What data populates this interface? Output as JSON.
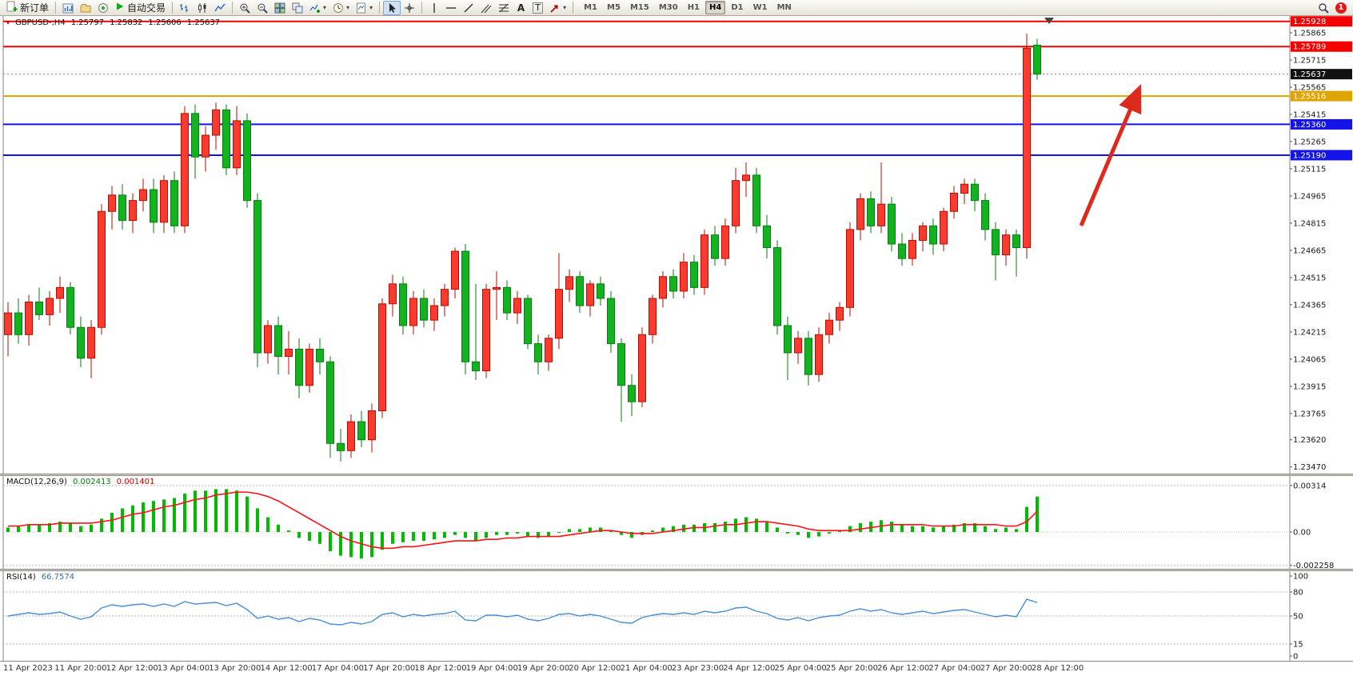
{
  "toolbar": {
    "new_order": "新订单",
    "autotrading": "自动交易",
    "text_tool": "A",
    "label_tool": "T",
    "timeframes": [
      "M1",
      "M5",
      "M15",
      "M30",
      "H1",
      "H4",
      "D1",
      "W1",
      "MN"
    ],
    "active_timeframe": "H4",
    "notification_count": "1"
  },
  "chart_header": {
    "symbol_tf": "GBPUSD-,H4",
    "open": "1.25797",
    "high": "1.25832",
    "low": "1.25606",
    "close": "1.25637"
  },
  "colors": {
    "up": "#f93b2f",
    "up_border": "#b80e00",
    "down": "#12b31f",
    "down_border": "#067d10",
    "macd_hist": "#00bb00",
    "macd_signal": "#ff1212",
    "rsi": "#4a8fd4",
    "arrow": "#dc2a1c",
    "axis_text": "#1a1a1a",
    "grid_dash": "#b5b5b5"
  },
  "hlines": [
    {
      "price": 1.25928,
      "label": "1.25928",
      "line": "#f50000",
      "box": "#f50000",
      "width": 2,
      "dashed": false
    },
    {
      "price": 1.25789,
      "label": "1.25789",
      "line": "#f50000",
      "box": "#f50000",
      "width": 2,
      "dashed": false
    },
    {
      "price": 1.25637,
      "label": "1.25637",
      "line": "#808080",
      "box": "#111111",
      "width": 1,
      "dashed": true
    },
    {
      "price": 1.25516,
      "label": "1.25516",
      "line": "#e0a400",
      "box": "#e0a400",
      "width": 2,
      "dashed": false
    },
    {
      "price": 1.2536,
      "label": "1.25360",
      "line": "#1414e8",
      "box": "#1414e8",
      "width": 2,
      "dashed": false
    },
    {
      "price": 1.2519,
      "label": "1.25190",
      "line": "#1414e8",
      "box": "#1414e8",
      "width": 2,
      "dashed": false
    }
  ],
  "price_axis": {
    "ticks": [
      "1.25865",
      "1.25715",
      "1.25565",
      "1.25415",
      "1.25265",
      "1.25115",
      "1.24965",
      "1.24815",
      "1.24665",
      "1.24515",
      "1.24365",
      "1.24215",
      "1.24065",
      "1.23915",
      "1.23765",
      "1.23620",
      "1.23470"
    ]
  },
  "chart_data": {
    "type": "candlestick",
    "symbol": "GBPUSD-",
    "timeframe": "H4",
    "price_range": [
      1.2346,
      1.2594
    ],
    "candles": [
      [
        1.242,
        1.2438,
        1.2408,
        1.2432
      ],
      [
        1.2432,
        1.244,
        1.2415,
        1.242
      ],
      [
        1.242,
        1.2442,
        1.2414,
        1.2438
      ],
      [
        1.2438,
        1.2446,
        1.2428,
        1.2431
      ],
      [
        1.2431,
        1.2444,
        1.2425,
        1.244
      ],
      [
        1.244,
        1.2452,
        1.2432,
        1.2446
      ],
      [
        1.2446,
        1.2449,
        1.242,
        1.2424
      ],
      [
        1.2424,
        1.243,
        1.2402,
        1.2407
      ],
      [
        1.2407,
        1.2428,
        1.2396,
        1.2424
      ],
      [
        1.2424,
        1.2492,
        1.242,
        1.2488
      ],
      [
        1.2488,
        1.2502,
        1.2478,
        1.2497
      ],
      [
        1.2497,
        1.2503,
        1.2478,
        1.2483
      ],
      [
        1.2483,
        1.2498,
        1.2476,
        1.2494
      ],
      [
        1.2494,
        1.2506,
        1.2488,
        1.25
      ],
      [
        1.25,
        1.2506,
        1.2476,
        1.2482
      ],
      [
        1.2482,
        1.2508,
        1.2476,
        1.2505
      ],
      [
        1.2505,
        1.251,
        1.2476,
        1.248
      ],
      [
        1.248,
        1.2546,
        1.2476,
        1.2542
      ],
      [
        1.2542,
        1.2547,
        1.2506,
        1.2518
      ],
      [
        1.2518,
        1.2535,
        1.251,
        1.253
      ],
      [
        1.253,
        1.2548,
        1.2522,
        1.2544
      ],
      [
        1.2544,
        1.2547,
        1.2508,
        1.2512
      ],
      [
        1.2512,
        1.2546,
        1.2508,
        1.2538
      ],
      [
        1.2538,
        1.2542,
        1.249,
        1.2494
      ],
      [
        1.2494,
        1.2498,
        1.2402,
        1.241
      ],
      [
        1.241,
        1.2428,
        1.2404,
        1.2425
      ],
      [
        1.2425,
        1.243,
        1.2398,
        1.2408
      ],
      [
        1.2408,
        1.2422,
        1.2398,
        1.2412
      ],
      [
        1.2412,
        1.2418,
        1.2385,
        1.2392
      ],
      [
        1.2392,
        1.2415,
        1.2388,
        1.2412
      ],
      [
        1.2412,
        1.2418,
        1.2398,
        1.2405
      ],
      [
        1.2405,
        1.2408,
        1.2352,
        1.236
      ],
      [
        1.236,
        1.2368,
        1.235,
        1.2356
      ],
      [
        1.2356,
        1.2376,
        1.2352,
        1.2372
      ],
      [
        1.2372,
        1.2378,
        1.2358,
        1.2362
      ],
      [
        1.2362,
        1.2382,
        1.2355,
        1.2378
      ],
      [
        1.2378,
        1.244,
        1.2374,
        1.2437
      ],
      [
        1.2437,
        1.2453,
        1.243,
        1.2448
      ],
      [
        1.2448,
        1.2452,
        1.242,
        1.2425
      ],
      [
        1.2425,
        1.2444,
        1.242,
        1.244
      ],
      [
        1.244,
        1.2445,
        1.2424,
        1.2428
      ],
      [
        1.2428,
        1.244,
        1.2422,
        1.2436
      ],
      [
        1.2436,
        1.2448,
        1.243,
        1.2445
      ],
      [
        1.2445,
        1.2468,
        1.244,
        1.2466
      ],
      [
        1.2466,
        1.247,
        1.2398,
        1.2405
      ],
      [
        1.2405,
        1.2448,
        1.2395,
        1.24
      ],
      [
        1.24,
        1.2448,
        1.2396,
        1.2445
      ],
      [
        1.2445,
        1.2455,
        1.2428,
        1.2446
      ],
      [
        1.2446,
        1.245,
        1.2428,
        1.2432
      ],
      [
        1.2432,
        1.2444,
        1.2426,
        1.244
      ],
      [
        1.244,
        1.2442,
        1.2412,
        1.2415
      ],
      [
        1.2415,
        1.242,
        1.2398,
        1.2405
      ],
      [
        1.2405,
        1.242,
        1.24,
        1.2418
      ],
      [
        1.2418,
        1.2465,
        1.2412,
        1.2445
      ],
      [
        1.2445,
        1.2456,
        1.2438,
        1.2452
      ],
      [
        1.2452,
        1.2455,
        1.2432,
        1.2436
      ],
      [
        1.2436,
        1.245,
        1.243,
        1.2448
      ],
      [
        1.2448,
        1.2452,
        1.2436,
        1.244
      ],
      [
        1.244,
        1.2444,
        1.241,
        1.2415
      ],
      [
        1.2415,
        1.2418,
        1.2372,
        1.2392
      ],
      [
        1.2392,
        1.2398,
        1.2375,
        1.2383
      ],
      [
        1.2383,
        1.2424,
        1.238,
        1.242
      ],
      [
        1.242,
        1.2442,
        1.2415,
        1.244
      ],
      [
        1.244,
        1.2455,
        1.2435,
        1.2452
      ],
      [
        1.2452,
        1.2456,
        1.244,
        1.2444
      ],
      [
        1.2444,
        1.2465,
        1.244,
        1.246
      ],
      [
        1.246,
        1.2464,
        1.2442,
        1.2446
      ],
      [
        1.2446,
        1.2478,
        1.2442,
        1.2475
      ],
      [
        1.2475,
        1.248,
        1.2458,
        1.2462
      ],
      [
        1.2462,
        1.2484,
        1.2458,
        1.248
      ],
      [
        1.248,
        1.2512,
        1.2476,
        1.2505
      ],
      [
        1.2505,
        1.2515,
        1.2496,
        1.2508
      ],
      [
        1.2508,
        1.2512,
        1.2476,
        1.248
      ],
      [
        1.248,
        1.2486,
        1.2462,
        1.2468
      ],
      [
        1.2468,
        1.2472,
        1.242,
        1.2425
      ],
      [
        1.2425,
        1.243,
        1.2395,
        1.241
      ],
      [
        1.241,
        1.2422,
        1.2404,
        1.2418
      ],
      [
        1.2418,
        1.2422,
        1.2392,
        1.2398
      ],
      [
        1.2398,
        1.2424,
        1.2394,
        1.242
      ],
      [
        1.242,
        1.2432,
        1.2415,
        1.2428
      ],
      [
        1.2428,
        1.2438,
        1.2422,
        1.2435
      ],
      [
        1.2435,
        1.2482,
        1.243,
        1.2478
      ],
      [
        1.2478,
        1.2498,
        1.2472,
        1.2495
      ],
      [
        1.2495,
        1.2499,
        1.2476,
        1.248
      ],
      [
        1.248,
        1.2515,
        1.2476,
        1.2492
      ],
      [
        1.2492,
        1.2496,
        1.2466,
        1.247
      ],
      [
        1.247,
        1.2476,
        1.2458,
        1.2462
      ],
      [
        1.2462,
        1.2476,
        1.2458,
        1.2472
      ],
      [
        1.2472,
        1.2482,
        1.2466,
        1.248
      ],
      [
        1.248,
        1.2484,
        1.2464,
        1.247
      ],
      [
        1.247,
        1.249,
        1.2466,
        1.2488
      ],
      [
        1.2488,
        1.2502,
        1.2484,
        1.2498
      ],
      [
        1.2498,
        1.2506,
        1.2492,
        1.2503
      ],
      [
        1.2503,
        1.2506,
        1.2488,
        1.2494
      ],
      [
        1.2494,
        1.2498,
        1.2472,
        1.2478
      ],
      [
        1.2478,
        1.2482,
        1.245,
        1.2464
      ],
      [
        1.2464,
        1.2478,
        1.2458,
        1.2475
      ],
      [
        1.2475,
        1.2478,
        1.2452,
        1.2468
      ],
      [
        1.2468,
        1.2586,
        1.2462,
        1.2578
      ],
      [
        1.25797,
        1.25832,
        1.25606,
        1.25637
      ]
    ],
    "macd": {
      "label": "MACD(12,26,9)",
      "value_main": "0.002413",
      "value_signal": "0.001401",
      "scale": [
        "0.00314",
        "0.00",
        "-0.002258"
      ],
      "hist": [
        0.0003,
        0.0004,
        0.0005,
        0.0005,
        0.0006,
        0.0007,
        0.0006,
        0.0004,
        0.0005,
        0.0009,
        0.0013,
        0.0016,
        0.0018,
        0.002,
        0.0021,
        0.0022,
        0.0023,
        0.0026,
        0.0028,
        0.0028,
        0.0029,
        0.0029,
        0.0028,
        0.0024,
        0.0016,
        0.001,
        0.0005,
        0.0001,
        -0.0004,
        -0.0006,
        -0.0008,
        -0.0013,
        -0.0016,
        -0.0017,
        -0.0018,
        -0.0017,
        -0.0012,
        -0.0008,
        -0.0007,
        -0.0006,
        -0.0006,
        -0.0005,
        -0.0004,
        -0.0002,
        -0.0004,
        -0.0006,
        -0.0004,
        -0.0002,
        -0.0002,
        -0.0001,
        -0.0003,
        -0.0004,
        -0.0003,
        0.0,
        0.0002,
        0.0002,
        0.0003,
        0.0003,
        0.0001,
        -0.0002,
        -0.0004,
        -0.0002,
        0.0001,
        0.0003,
        0.0004,
        0.0005,
        0.0005,
        0.0006,
        0.0006,
        0.0007,
        0.0009,
        0.001,
        0.0009,
        0.0007,
        0.0003,
        -0.0001,
        -0.0002,
        -0.0004,
        -0.0003,
        -0.0001,
        0.0001,
        0.0004,
        0.0006,
        0.0007,
        0.0008,
        0.0007,
        0.0005,
        0.0004,
        0.0004,
        0.0003,
        0.0004,
        0.0005,
        0.0006,
        0.0006,
        0.0004,
        0.0002,
        0.0003,
        0.0002,
        0.0017,
        0.0024
      ],
      "signal": [
        0.0004,
        0.0004,
        0.0005,
        0.0005,
        0.0005,
        0.0006,
        0.0006,
        0.0006,
        0.0006,
        0.0007,
        0.0008,
        0.001,
        0.0012,
        0.0013,
        0.0015,
        0.0017,
        0.0018,
        0.002,
        0.0022,
        0.0023,
        0.0025,
        0.0026,
        0.0027,
        0.0027,
        0.0026,
        0.0024,
        0.0021,
        0.0017,
        0.0013,
        0.0009,
        0.0005,
        0.0001,
        -0.0003,
        -0.0006,
        -0.0008,
        -0.001,
        -0.0011,
        -0.0011,
        -0.001,
        -0.001,
        -0.0009,
        -0.0008,
        -0.0007,
        -0.0006,
        -0.0006,
        -0.0006,
        -0.0005,
        -0.0005,
        -0.0004,
        -0.0004,
        -0.0003,
        -0.0003,
        -0.0003,
        -0.0003,
        -0.0002,
        -0.0001,
        0.0,
        0.0001,
        0.0001,
        0.0,
        -0.0001,
        -0.0001,
        -0.0001,
        0.0,
        0.0001,
        0.0002,
        0.0003,
        0.0003,
        0.0004,
        0.0005,
        0.0005,
        0.0006,
        0.0007,
        0.0007,
        0.0006,
        0.0005,
        0.0004,
        0.0002,
        0.0001,
        0.0001,
        0.0001,
        0.0001,
        0.0002,
        0.0003,
        0.0004,
        0.0005,
        0.0005,
        0.0005,
        0.0005,
        0.0004,
        0.0004,
        0.0004,
        0.0005,
        0.0005,
        0.0005,
        0.0005,
        0.0004,
        0.0004,
        0.0007,
        0.0014
      ]
    },
    "rsi": {
      "label": "RSI(14)",
      "value": "66.7574",
      "levels": [
        "100",
        "80",
        "50",
        "15",
        "0"
      ],
      "series": [
        50,
        52,
        54,
        52,
        53,
        55,
        50,
        46,
        49,
        60,
        64,
        62,
        64,
        65,
        62,
        65,
        62,
        68,
        65,
        66,
        67,
        63,
        66,
        58,
        47,
        50,
        46,
        48,
        43,
        47,
        45,
        40,
        39,
        42,
        40,
        43,
        52,
        54,
        49,
        52,
        50,
        52,
        53,
        56,
        45,
        44,
        51,
        51,
        49,
        51,
        46,
        44,
        47,
        52,
        53,
        50,
        52,
        50,
        46,
        42,
        41,
        48,
        51,
        53,
        52,
        54,
        52,
        56,
        54,
        56,
        60,
        61,
        56,
        53,
        47,
        45,
        48,
        44,
        48,
        50,
        51,
        56,
        59,
        56,
        58,
        54,
        52,
        54,
        56,
        53,
        55,
        57,
        58,
        55,
        52,
        49,
        51,
        49,
        71,
        66.8
      ]
    },
    "time_labels": [
      "11 Apr 2023",
      "11 Apr 20:00",
      "12 Apr 12:00",
      "13 Apr 04:00",
      "13 Apr 20:00",
      "14 Apr 12:00",
      "17 Apr 04:00",
      "17 Apr 20:00",
      "18 Apr 12:00",
      "19 Apr 04:00",
      "19 Apr 20:00",
      "20 Apr 12:00",
      "21 Apr 04:00",
      "23 Apr 23:00",
      "24 Apr 12:00",
      "25 Apr 04:00",
      "25 Apr 20:00",
      "26 Apr 12:00",
      "27 Apr 04:00",
      "27 Apr 20:00",
      "28 Apr 12:00"
    ]
  }
}
